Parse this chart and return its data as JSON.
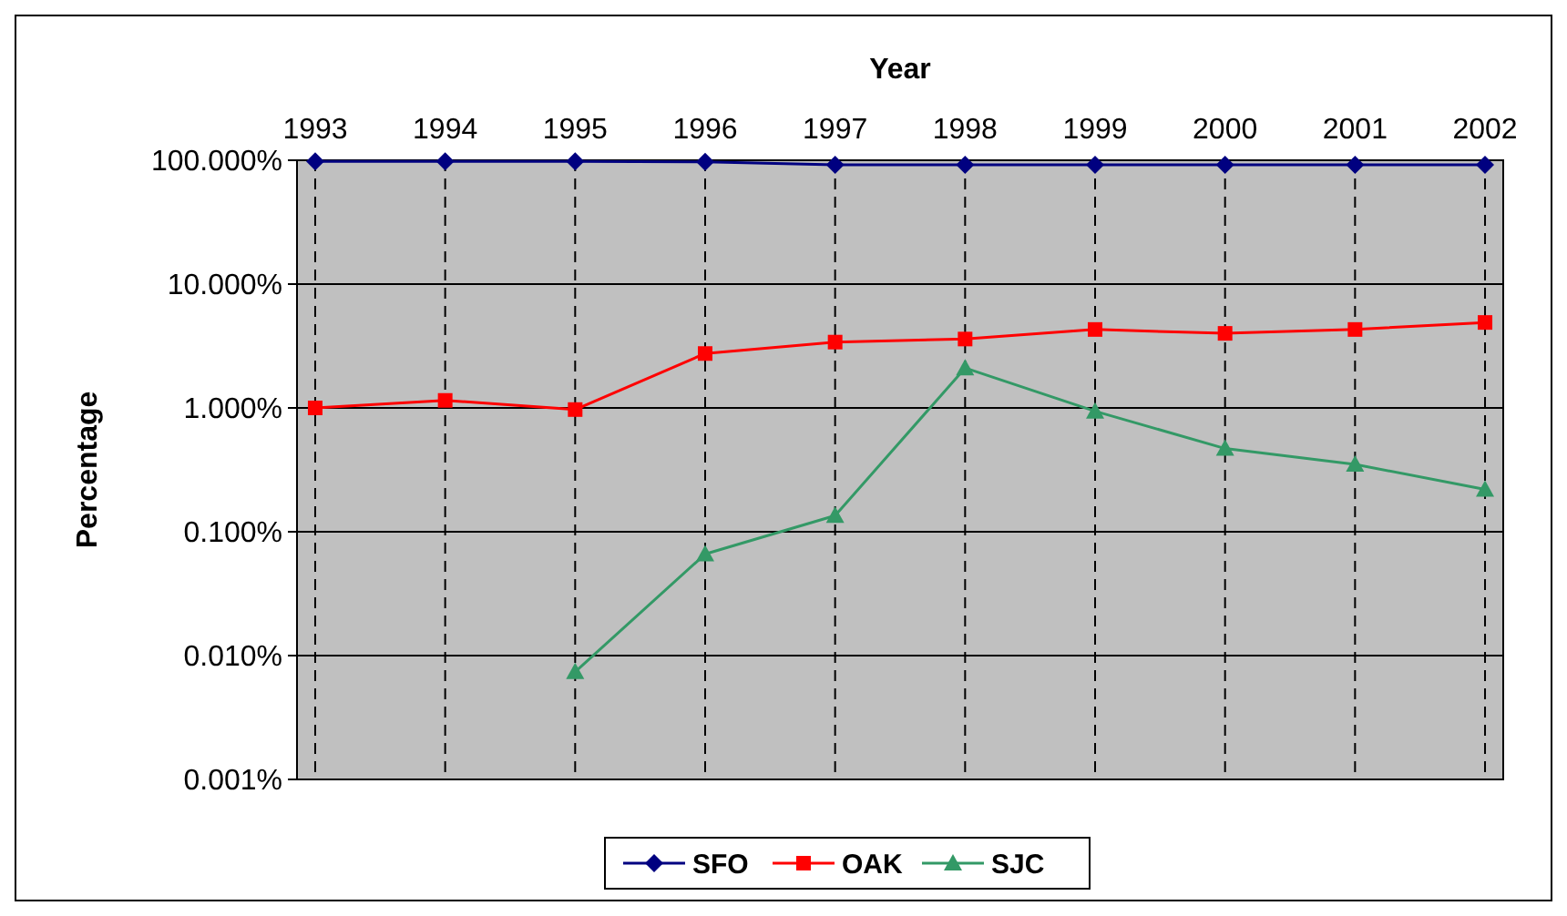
{
  "chart_data": {
    "type": "line",
    "xlabel": "Year",
    "ylabel": "Percentage",
    "categories": [
      "1993",
      "1994",
      "1995",
      "1996",
      "1997",
      "1998",
      "1999",
      "2000",
      "2001",
      "2002"
    ],
    "series": [
      {
        "name": "SFO",
        "color": "#000080",
        "marker": "diamond",
        "values": [
          98,
          98,
          98,
          97,
          92,
          92,
          92,
          92,
          92,
          92
        ]
      },
      {
        "name": "OAK",
        "color": "#ff0000",
        "marker": "square",
        "values": [
          1.0,
          1.15,
          0.97,
          2.75,
          3.4,
          3.6,
          4.3,
          4.0,
          4.3,
          4.9
        ]
      },
      {
        "name": "SJC",
        "color": "#339966",
        "marker": "triangle",
        "values": [
          null,
          null,
          0.0074,
          0.066,
          0.135,
          2.1,
          0.94,
          0.47,
          0.35,
          0.22
        ]
      }
    ],
    "log": true,
    "ylim": [
      0.001,
      100
    ],
    "yticks": [
      {
        "value": 0.001,
        "label": "0.001%"
      },
      {
        "value": 0.01,
        "label": "0.010%"
      },
      {
        "value": 0.1,
        "label": "0.100%"
      },
      {
        "value": 1,
        "label": "1.000%"
      },
      {
        "value": 10,
        "label": "10.000%"
      },
      {
        "value": 100,
        "label": "100.000%"
      }
    ],
    "grid": true,
    "legend": "bottom"
  }
}
